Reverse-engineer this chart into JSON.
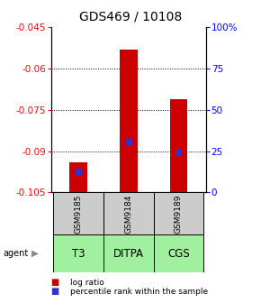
{
  "title": "GDS469 / 10108",
  "categories": [
    "GSM9185",
    "GSM9184",
    "GSM9189"
  ],
  "agents": [
    "T3",
    "DITPA",
    "CGS"
  ],
  "ylim_left": [
    -0.105,
    -0.045
  ],
  "ylim_right": [
    0,
    100
  ],
  "yticks_left": [
    -0.105,
    -0.09,
    -0.075,
    -0.06,
    -0.045
  ],
  "yticks_right": [
    0,
    25,
    50,
    75,
    100
  ],
  "ytick_labels_left": [
    "-0.105",
    "-0.09",
    "-0.075",
    "-0.06",
    "-0.045"
  ],
  "ytick_labels_right": [
    "0",
    "25",
    "50",
    "75",
    "100%"
  ],
  "bar_base": -0.105,
  "log_ratios": [
    -0.094,
    -0.053,
    -0.071
  ],
  "percentile_ranks": [
    13,
    31,
    24
  ],
  "bar_color": "#cc0000",
  "percentile_color": "#3333cc",
  "agent_color": "#a0f0a0",
  "sample_bg_color": "#cccccc",
  "title_fontsize": 10,
  "tick_fontsize": 7.5,
  "agent_label_fontsize": 8.5,
  "legend_fontsize": 6.5,
  "bar_width": 0.35
}
